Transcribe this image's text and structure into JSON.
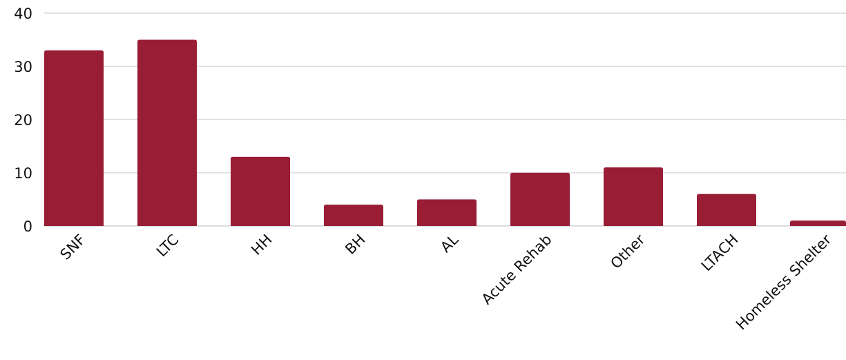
{
  "chart_data": {
    "type": "bar",
    "title": "",
    "xlabel": "",
    "ylabel": "",
    "categories": [
      "SNF",
      "LTC",
      "HH",
      "BH",
      "AL",
      "Acute Rehab",
      "Other",
      "LTACH",
      "Homeless Shelter"
    ],
    "values": [
      33,
      35,
      13,
      4,
      5,
      10,
      11,
      6,
      1
    ],
    "ylim": [
      0,
      40
    ],
    "yticks": [
      "0",
      "10",
      "20",
      "30",
      "40"
    ],
    "grid": true,
    "legend": "none",
    "bar_color": "#981d35"
  }
}
